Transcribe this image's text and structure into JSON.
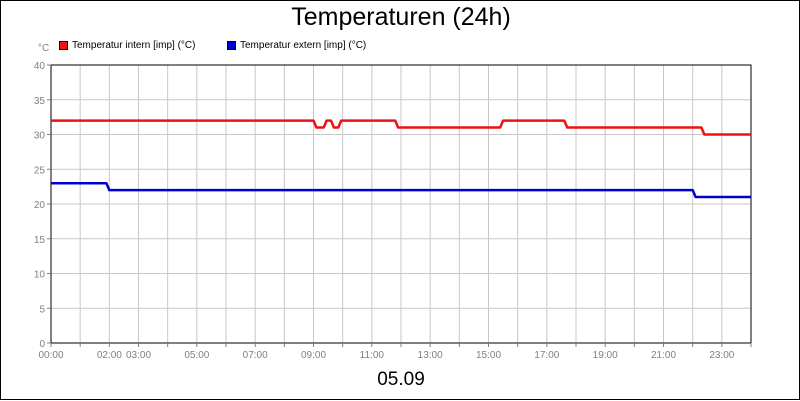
{
  "chart_data": {
    "type": "line",
    "title": "Temperaturen (24h)",
    "date_label": "05.09",
    "y_unit": "°C",
    "ylim": [
      0,
      40
    ],
    "y_ticks": [
      0,
      5,
      10,
      15,
      20,
      25,
      30,
      35,
      40
    ],
    "x_range_hours": [
      0,
      24
    ],
    "x_tick_labels": [
      {
        "h": 0,
        "label": "00:00"
      },
      {
        "h": 2,
        "label": "02:00"
      },
      {
        "h": 3,
        "label": "03:00"
      },
      {
        "h": 5,
        "label": "05:00"
      },
      {
        "h": 7,
        "label": "07:00"
      },
      {
        "h": 9,
        "label": "09:00"
      },
      {
        "h": 11,
        "label": "11:00"
      },
      {
        "h": 13,
        "label": "13:00"
      },
      {
        "h": 15,
        "label": "15:00"
      },
      {
        "h": 17,
        "label": "17:00"
      },
      {
        "h": 19,
        "label": "19:00"
      },
      {
        "h": 21,
        "label": "21:00"
      },
      {
        "h": 23,
        "label": "23:00"
      }
    ],
    "grid": true,
    "legend_position": "top-left",
    "series": [
      {
        "name": "Temperatur intern [imp] (°C)",
        "color": "#ee1111",
        "points": [
          {
            "h": 0,
            "y": 32
          },
          {
            "h": 9.0,
            "y": 32
          },
          {
            "h": 9.1,
            "y": 31
          },
          {
            "h": 9.35,
            "y": 31
          },
          {
            "h": 9.45,
            "y": 32
          },
          {
            "h": 9.6,
            "y": 32
          },
          {
            "h": 9.7,
            "y": 31
          },
          {
            "h": 9.85,
            "y": 31
          },
          {
            "h": 9.95,
            "y": 32
          },
          {
            "h": 11.8,
            "y": 32
          },
          {
            "h": 11.9,
            "y": 31
          },
          {
            "h": 15.4,
            "y": 31
          },
          {
            "h": 15.5,
            "y": 32
          },
          {
            "h": 17.6,
            "y": 32
          },
          {
            "h": 17.7,
            "y": 31
          },
          {
            "h": 22.3,
            "y": 31
          },
          {
            "h": 22.4,
            "y": 30
          },
          {
            "h": 24,
            "y": 30
          }
        ]
      },
      {
        "name": "Temperatur extern [imp] (°C)",
        "color": "#0000cc",
        "points": [
          {
            "h": 0,
            "y": 23
          },
          {
            "h": 1.9,
            "y": 23
          },
          {
            "h": 2.0,
            "y": 22
          },
          {
            "h": 22.0,
            "y": 22
          },
          {
            "h": 22.1,
            "y": 21
          },
          {
            "h": 24,
            "y": 21
          }
        ]
      }
    ]
  }
}
